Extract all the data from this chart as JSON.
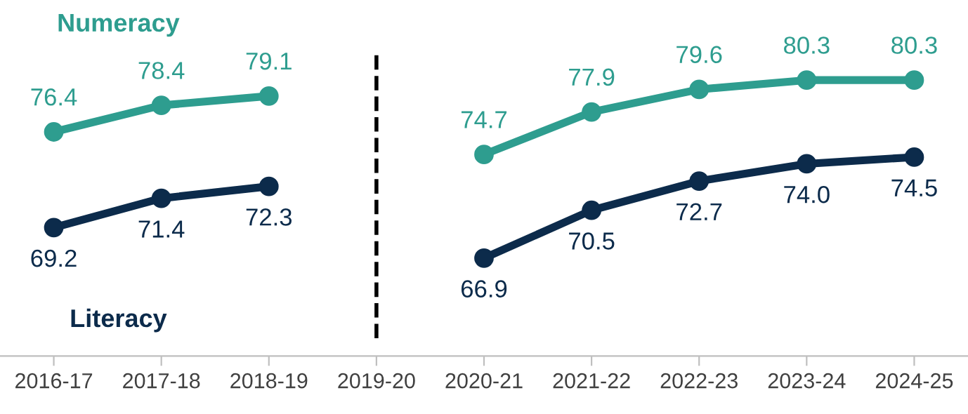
{
  "chart_data": {
    "type": "line",
    "categories": [
      "2016-17",
      "2017-18",
      "2018-19",
      "2019-20",
      "2020-21",
      "2021-22",
      "2022-23",
      "2023-24",
      "2024-25"
    ],
    "series": [
      {
        "name": "Numeracy",
        "color": "#2e9d8f",
        "values": [
          76.4,
          78.4,
          79.1,
          null,
          74.7,
          77.9,
          79.6,
          80.3,
          80.3
        ],
        "value_labels": [
          "76.4",
          "78.4",
          "79.1",
          null,
          "74.7",
          "77.9",
          "79.6",
          "80.3",
          "80.3"
        ]
      },
      {
        "name": "Literacy",
        "color": "#0c2b4b",
        "values": [
          69.2,
          71.4,
          72.3,
          null,
          66.9,
          70.5,
          72.7,
          74.0,
          74.5
        ],
        "value_labels": [
          "69.2",
          "71.4",
          "72.3",
          null,
          "66.9",
          "70.5",
          "72.7",
          "74.0",
          "74.5"
        ]
      }
    ],
    "tick_labels": "x",
    "marker": "circle",
    "line_style": "solid",
    "grid": false,
    "ref_lines": [
      {
        "axis": "x",
        "value": "2019-20",
        "color": "#000000",
        "line_style": "dashed"
      }
    ]
  }
}
